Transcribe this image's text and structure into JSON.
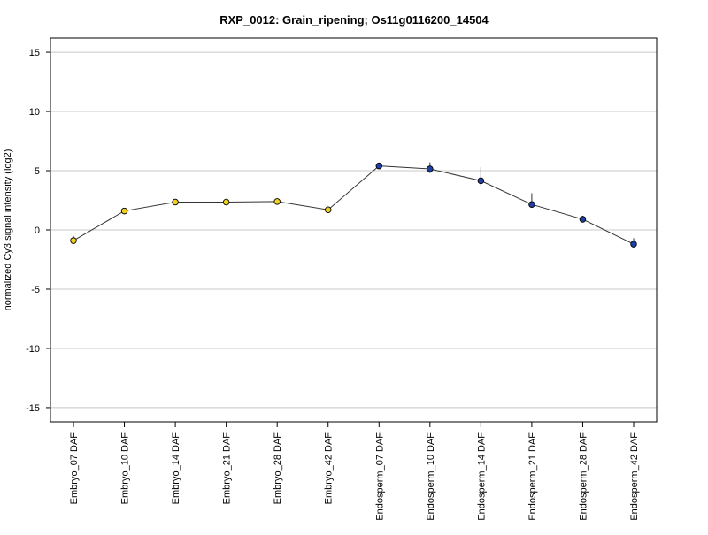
{
  "chart_data": {
    "type": "line",
    "title": "RXP_0012: Grain_ripening; Os11g0116200_14504",
    "xlabel": "",
    "ylabel": "normalized Cy3 signal intensity (log2)",
    "ylim": [
      -16.2,
      16.2
    ],
    "yticks": [
      -15,
      -10,
      -5,
      0,
      5,
      10,
      15
    ],
    "grid": true,
    "categories": [
      "Embryo_07 DAF",
      "Embryo_10 DAF",
      "Embryo_14 DAF",
      "Embryo_21 DAF",
      "Embryo_28 DAF",
      "Embryo_42 DAF",
      "Endosperm_07 DAF",
      "Endosperm_10 DAF",
      "Endosperm_14 DAF",
      "Endosperm_21 DAF",
      "Endosperm_28 DAF",
      "Endosperm_42 DAF"
    ],
    "values": [
      -0.9,
      1.6,
      2.35,
      2.35,
      2.4,
      1.7,
      5.4,
      5.15,
      4.15,
      2.15,
      0.9,
      -1.2
    ],
    "error_upper": [
      -0.5,
      1.8,
      2.5,
      2.5,
      2.6,
      1.8,
      5.5,
      5.7,
      5.3,
      3.1,
      1.2,
      -0.7
    ],
    "error_lower": [
      -1.2,
      1.5,
      2.3,
      2.3,
      2.3,
      1.6,
      5.3,
      4.8,
      3.7,
      1.9,
      0.7,
      -1.4
    ],
    "point_colors": [
      "#f0d020",
      "#f0d020",
      "#f0d020",
      "#f0d020",
      "#f0d020",
      "#f0d020",
      "#1f3fa8",
      "#1f3fa8",
      "#1f3fa8",
      "#1f3fa8",
      "#1f3fa8",
      "#1f3fa8"
    ]
  }
}
